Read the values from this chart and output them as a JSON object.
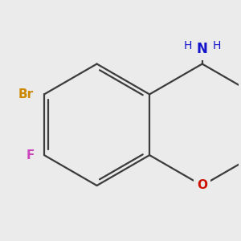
{
  "bg_color": "#ebebeb",
  "bond_color": "#3c3c3c",
  "bond_width": 1.6,
  "atom_colors": {
    "N": "#1414cc",
    "O": "#cc1100",
    "Br": "#cc8800",
    "F": "#cc44bb"
  },
  "font_size_atom": 11,
  "font_size_H": 10,
  "xlim": [
    -1.4,
    1.4
  ],
  "ylim": [
    -1.4,
    1.4
  ]
}
